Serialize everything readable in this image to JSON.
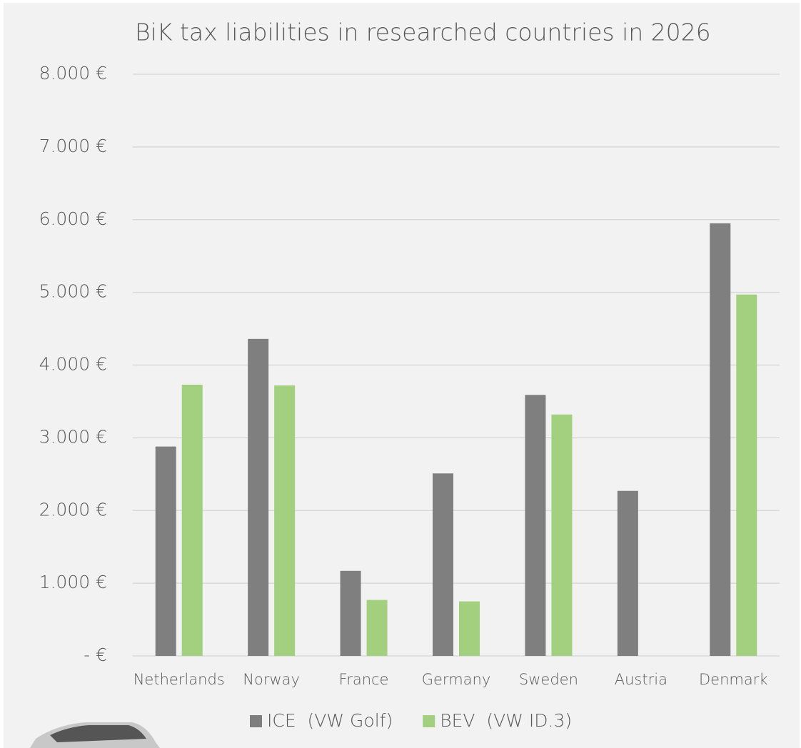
{
  "chart_data": {
    "type": "bar",
    "title": "BiK tax liabilities in researched countries in 2026",
    "categories": [
      "Netherlands",
      "Norway",
      "France",
      "Germany",
      "Sweden",
      "Austria",
      "Denmark"
    ],
    "series": [
      {
        "name": "ICE  (VW Golf)",
        "color": "#7f7f7f",
        "values": [
          2880,
          4360,
          1170,
          2510,
          3590,
          2270,
          5950
        ]
      },
      {
        "name": "BEV  (VW ID.3)",
        "color": "#a3d07e",
        "values": [
          3730,
          3720,
          770,
          750,
          3320,
          null,
          4970
        ]
      }
    ],
    "ylim": [
      0,
      8000
    ],
    "yticks": [
      {
        "value": 0,
        "label": "-   €"
      },
      {
        "value": 1000,
        "label": "1.000 €"
      },
      {
        "value": 2000,
        "label": "2.000 €"
      },
      {
        "value": 3000,
        "label": "3.000 €"
      },
      {
        "value": 4000,
        "label": "4.000 €"
      },
      {
        "value": 5000,
        "label": "5.000 €"
      },
      {
        "value": 6000,
        "label": "6.000 €"
      },
      {
        "value": 7000,
        "label": "7.000 €"
      },
      {
        "value": 8000,
        "label": "8.000 €"
      }
    ],
    "grid": true,
    "legend": "bottom"
  }
}
